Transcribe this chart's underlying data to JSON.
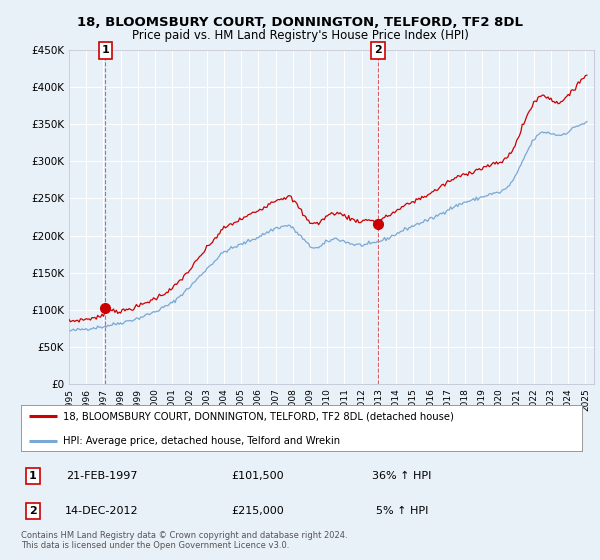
{
  "title": "18, BLOOMSBURY COURT, DONNINGTON, TELFORD, TF2 8DL",
  "subtitle": "Price paid vs. HM Land Registry's House Price Index (HPI)",
  "property_label": "18, BLOOMSBURY COURT, DONNINGTON, TELFORD, TF2 8DL (detached house)",
  "hpi_label": "HPI: Average price, detached house, Telford and Wrekin",
  "annotation1_date": "21-FEB-1997",
  "annotation1_price": "£101,500",
  "annotation1_hpi": "36% ↑ HPI",
  "annotation2_date": "14-DEC-2012",
  "annotation2_price": "£215,000",
  "annotation2_hpi": "5% ↑ HPI",
  "footer": "Contains HM Land Registry data © Crown copyright and database right 2024.\nThis data is licensed under the Open Government Licence v3.0.",
  "property_color": "#cc0000",
  "hpi_color": "#7aa8d4",
  "background_color": "#e8f0f8",
  "plot_bg_color": "#e8f0f8",
  "grid_color": "#ffffff",
  "ylim": [
    0,
    450000
  ],
  "yticks": [
    0,
    50000,
    100000,
    150000,
    200000,
    250000,
    300000,
    350000,
    400000,
    450000
  ],
  "sale1_x": 1997.12,
  "sale1_y": 101500,
  "sale2_x": 2012.96,
  "sale2_y": 215000,
  "xmin": 1995.0,
  "xmax": 2025.5
}
